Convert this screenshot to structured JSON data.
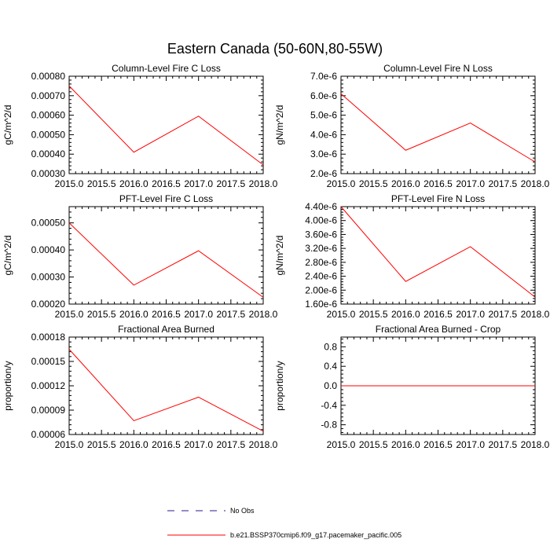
{
  "figure": {
    "title": "Eastern Canada (50-60N,80-55W)"
  },
  "legend": {
    "entries": [
      {
        "label": "No Obs",
        "color": "#2e1a8c",
        "dash": true
      },
      {
        "label": "b.e21.BSSP370cmip6.f09_g17.pacemaker_pacific.005",
        "color": "#ff0000",
        "dash": false
      }
    ]
  },
  "colors": {
    "series": "#ff0000",
    "axes": "#000000"
  },
  "chart_data": [
    {
      "type": "line",
      "title": "Column-Level Fire C Loss",
      "ylabel": "gC/m^2/d",
      "x": [
        2015,
        2016,
        2017,
        2018
      ],
      "series": [
        {
          "values": [
            0.00075,
            0.00041,
            0.000595,
            0.000345
          ]
        }
      ],
      "xlim": [
        2015,
        2018
      ],
      "ylim": [
        0.0003,
        0.0008
      ],
      "xticks": [
        2015.0,
        2015.5,
        2016.0,
        2016.5,
        2017.0,
        2017.5,
        2018.0
      ],
      "xtick_labels": [
        "2015.0",
        "2015.5",
        "2016.0",
        "2016.5",
        "2017.0",
        "2017.5",
        "2018.0"
      ],
      "yticks": [
        0.0003,
        0.0004,
        0.0005,
        0.0006,
        0.0007,
        0.0008
      ],
      "ytick_labels": [
        "0.00030",
        "0.00040",
        "0.00050",
        "0.00060",
        "0.00070",
        "0.00080"
      ],
      "grid": false
    },
    {
      "type": "line",
      "title": "Column-Level Fire N Loss",
      "ylabel": "gN/m^2/d",
      "x": [
        2015,
        2016,
        2017,
        2018
      ],
      "series": [
        {
          "values": [
            6.1e-06,
            3.2e-06,
            4.6e-06,
            2.6e-06
          ]
        }
      ],
      "xlim": [
        2015,
        2018
      ],
      "ylim": [
        2e-06,
        7e-06
      ],
      "xticks": [
        2015.0,
        2015.5,
        2016.0,
        2016.5,
        2017.0,
        2017.5,
        2018.0
      ],
      "xtick_labels": [
        "2015.0",
        "2015.5",
        "2016.0",
        "2016.5",
        "2017.0",
        "2017.5",
        "2018.0"
      ],
      "yticks": [
        2e-06,
        3e-06,
        4e-06,
        5e-06,
        6e-06,
        7e-06
      ],
      "ytick_labels": [
        "2.0e-6",
        "3.0e-6",
        "4.0e-6",
        "5.0e-6",
        "6.0e-6",
        "7.0e-6"
      ],
      "grid": false
    },
    {
      "type": "line",
      "title": "PFT-Level Fire C Loss",
      "ylabel": "gC/m^2/d",
      "x": [
        2015,
        2016,
        2017,
        2018
      ],
      "series": [
        {
          "values": [
            0.0005,
            0.00027,
            0.000397,
            0.000225
          ]
        }
      ],
      "xlim": [
        2015,
        2018
      ],
      "ylim": [
        0.0002,
        0.00056
      ],
      "xticks": [
        2015.0,
        2015.5,
        2016.0,
        2016.5,
        2017.0,
        2017.5,
        2018.0
      ],
      "xtick_labels": [
        "2015.0",
        "2015.5",
        "2016.0",
        "2016.5",
        "2017.0",
        "2017.5",
        "2018.0"
      ],
      "yticks": [
        0.0002,
        0.0003,
        0.0004,
        0.0005
      ],
      "ytick_labels": [
        "0.00020",
        "0.00030",
        "0.00040",
        "0.00050"
      ],
      "grid": false
    },
    {
      "type": "line",
      "title": "PFT-Level Fire N Loss",
      "ylabel": "gN/m^2/d",
      "x": [
        2015,
        2016,
        2017,
        2018
      ],
      "series": [
        {
          "values": [
            4.4e-06,
            2.25e-06,
            3.25e-06,
            1.8e-06
          ]
        }
      ],
      "xlim": [
        2015,
        2018
      ],
      "ylim": [
        1.6e-06,
        4.4e-06
      ],
      "xticks": [
        2015.0,
        2015.5,
        2016.0,
        2016.5,
        2017.0,
        2017.5,
        2018.0
      ],
      "xtick_labels": [
        "2015.0",
        "2015.5",
        "2016.0",
        "2016.5",
        "2017.0",
        "2017.5",
        "2018.0"
      ],
      "yticks": [
        1.6e-06,
        2e-06,
        2.4e-06,
        2.8e-06,
        3.2e-06,
        3.6e-06,
        4e-06,
        4.4e-06
      ],
      "ytick_labels": [
        "1.60e-6",
        "2.00e-6",
        "2.40e-6",
        "2.80e-6",
        "3.20e-6",
        "3.60e-6",
        "4.00e-6",
        "4.40e-6"
      ],
      "grid": false
    },
    {
      "type": "line",
      "title": "Fractional Area Burned",
      "ylabel": "proportion/y",
      "x": [
        2015,
        2016,
        2017,
        2018
      ],
      "series": [
        {
          "values": [
            0.000165,
            7.7e-05,
            0.000106,
            6.4e-05
          ]
        }
      ],
      "xlim": [
        2015,
        2018
      ],
      "ylim": [
        6e-05,
        0.00018
      ],
      "xticks": [
        2015.0,
        2015.5,
        2016.0,
        2016.5,
        2017.0,
        2017.5,
        2018.0
      ],
      "xtick_labels": [
        "2015.0",
        "2015.5",
        "2016.0",
        "2016.5",
        "2017.0",
        "2017.5",
        "2018.0"
      ],
      "yticks": [
        6e-05,
        9e-05,
        0.00012,
        0.00015,
        0.00018
      ],
      "ytick_labels": [
        "0.00006",
        "0.00009",
        "0.00012",
        "0.00015",
        "0.00018"
      ],
      "grid": false
    },
    {
      "type": "line",
      "title": "Fractional Area Burned - Crop",
      "ylabel": "proportion/y",
      "x": [
        2015,
        2016,
        2017,
        2018
      ],
      "series": [
        {
          "values": [
            0,
            0,
            0,
            0
          ]
        }
      ],
      "xlim": [
        2015,
        2018
      ],
      "ylim": [
        -1.0,
        1.0
      ],
      "xticks": [
        2015.0,
        2015.5,
        2016.0,
        2016.5,
        2017.0,
        2017.5,
        2018.0
      ],
      "xtick_labels": [
        "2015.0",
        "2015.5",
        "2016.0",
        "2016.5",
        "2017.0",
        "2017.5",
        "2018.0"
      ],
      "yticks": [
        -0.8,
        -0.4,
        0.0,
        0.4,
        0.8
      ],
      "ytick_labels": [
        "-0.8",
        "-0.4",
        "0.0",
        "0.4",
        "0.8"
      ],
      "grid": false
    }
  ]
}
